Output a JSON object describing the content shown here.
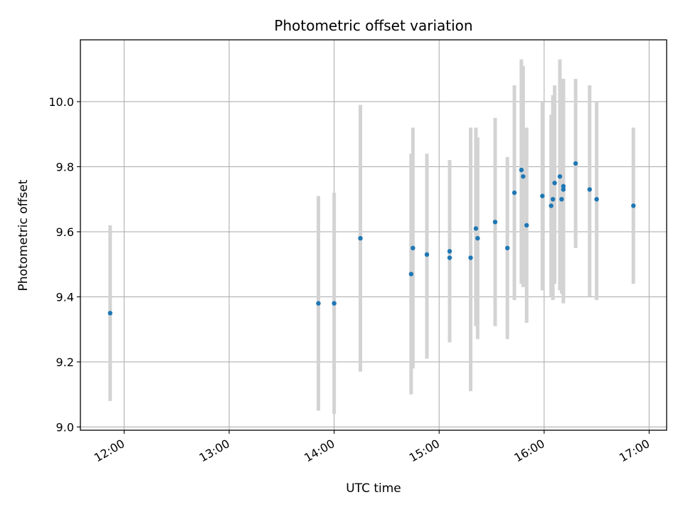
{
  "chart_data": {
    "type": "scatter",
    "title": "Photometric offset variation",
    "xlabel": "UTC time",
    "ylabel": "Photometric offset",
    "x_ticks": [
      "12:00",
      "13:00",
      "14:00",
      "15:00",
      "16:00",
      "17:00"
    ],
    "y_ticks": [
      "9.0",
      "9.2",
      "9.4",
      "9.6",
      "9.8",
      "10.0"
    ],
    "xlim": [
      "11:35",
      "17:10"
    ],
    "ylim": [
      8.99,
      10.19
    ],
    "grid": true,
    "marker_color": "#1f77b4",
    "errorbar_color": "#d3d3d3",
    "points": [
      {
        "x": "11:52",
        "y": 9.35,
        "ylow": 9.08,
        "yhigh": 9.62
      },
      {
        "x": "13:51",
        "y": 9.38,
        "ylow": 9.05,
        "yhigh": 9.71
      },
      {
        "x": "14:00",
        "y": 9.38,
        "ylow": 9.04,
        "yhigh": 9.72
      },
      {
        "x": "14:15",
        "y": 9.58,
        "ylow": 9.17,
        "yhigh": 9.99
      },
      {
        "x": "14:44",
        "y": 9.47,
        "ylow": 9.1,
        "yhigh": 9.84
      },
      {
        "x": "14:45",
        "y": 9.55,
        "ylow": 9.18,
        "yhigh": 9.92
      },
      {
        "x": "14:53",
        "y": 9.53,
        "ylow": 9.21,
        "yhigh": 9.84
      },
      {
        "x": "15:06",
        "y": 9.52,
        "ylow": 9.26,
        "yhigh": 9.82
      },
      {
        "x": "15:06",
        "y": 9.54,
        "ylow": 9.26,
        "yhigh": 9.82
      },
      {
        "x": "15:18",
        "y": 9.52,
        "ylow": 9.11,
        "yhigh": 9.92
      },
      {
        "x": "15:21",
        "y": 9.61,
        "ylow": 9.31,
        "yhigh": 9.92
      },
      {
        "x": "15:22",
        "y": 9.58,
        "ylow": 9.27,
        "yhigh": 9.89
      },
      {
        "x": "15:32",
        "y": 9.63,
        "ylow": 9.31,
        "yhigh": 9.95
      },
      {
        "x": "15:39",
        "y": 9.55,
        "ylow": 9.27,
        "yhigh": 9.83
      },
      {
        "x": "15:43",
        "y": 9.72,
        "ylow": 9.39,
        "yhigh": 10.05
      },
      {
        "x": "15:47",
        "y": 9.79,
        "ylow": 9.44,
        "yhigh": 10.13
      },
      {
        "x": "15:48",
        "y": 9.77,
        "ylow": 9.43,
        "yhigh": 10.11
      },
      {
        "x": "15:50",
        "y": 9.62,
        "ylow": 9.32,
        "yhigh": 9.92
      },
      {
        "x": "15:59",
        "y": 9.71,
        "ylow": 9.42,
        "yhigh": 10.0
      },
      {
        "x": "16:04",
        "y": 9.68,
        "ylow": 9.4,
        "yhigh": 9.96
      },
      {
        "x": "16:05",
        "y": 9.7,
        "ylow": 9.39,
        "yhigh": 10.02
      },
      {
        "x": "16:06",
        "y": 9.75,
        "ylow": 9.44,
        "yhigh": 10.05
      },
      {
        "x": "16:09",
        "y": 9.77,
        "ylow": 9.42,
        "yhigh": 10.13
      },
      {
        "x": "16:10",
        "y": 9.7,
        "ylow": 9.41,
        "yhigh": 10.0
      },
      {
        "x": "16:11",
        "y": 9.73,
        "ylow": 9.38,
        "yhigh": 10.07
      },
      {
        "x": "16:11",
        "y": 9.74,
        "ylow": 9.4,
        "yhigh": 10.07
      },
      {
        "x": "16:18",
        "y": 9.81,
        "ylow": 9.55,
        "yhigh": 10.07
      },
      {
        "x": "16:26",
        "y": 9.73,
        "ylow": 9.4,
        "yhigh": 10.05
      },
      {
        "x": "16:30",
        "y": 9.7,
        "ylow": 9.39,
        "yhigh": 10.0
      },
      {
        "x": "16:51",
        "y": 9.68,
        "ylow": 9.44,
        "yhigh": 9.92
      }
    ]
  }
}
